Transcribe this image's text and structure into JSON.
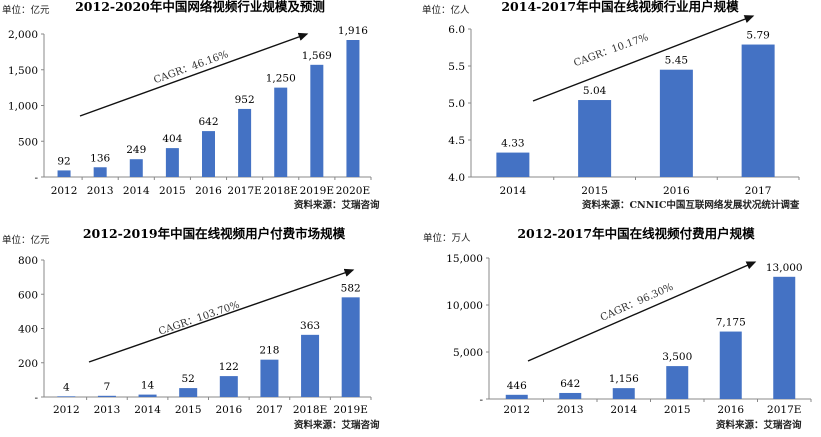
{
  "chart_data": [
    {
      "type": "bar",
      "title": "2012-2020年中国网络视频行业规模及预测",
      "unit_label": "单位：亿元",
      "categories": [
        "2012",
        "2013",
        "2014",
        "2015",
        "2016",
        "2017E",
        "2018E",
        "2019E",
        "2020E"
      ],
      "values": [
        92,
        136,
        249,
        404,
        642,
        952,
        1250,
        1569,
        1916
      ],
      "value_labels": [
        "92",
        "136",
        "249",
        "404",
        "642",
        "952",
        "1,250",
        "1,569",
        "1,916"
      ],
      "ylim": [
        0,
        2000
      ],
      "yticks": [
        "-",
        "500",
        "1,000",
        "1,500",
        "2,000"
      ],
      "cagr": "CAGR：46.16%",
      "source": "",
      "grid": false,
      "bar_color": "#4472C4"
    },
    {
      "type": "bar",
      "title": "2014-2017年中国在线视频行业用户规模",
      "unit_label": "单位：亿人",
      "categories": [
        "2014",
        "2015",
        "2016",
        "2017"
      ],
      "values": [
        4.33,
        5.04,
        5.45,
        5.79
      ],
      "value_labels": [
        "4.33",
        "5.04",
        "5.45",
        "5.79"
      ],
      "ylim": [
        4.0,
        6.0
      ],
      "yticks": [
        "4.0",
        "4.5",
        "5.0",
        "5.5",
        "6.0"
      ],
      "cagr": "CAGR：10.17%",
      "source": "资料来源：CNNIC中国互联网络发展状况统计调查",
      "grid": false,
      "bar_color": "#4472C4"
    },
    {
      "type": "bar",
      "title": "2012-2019年中国在线视频用户付费市场规模",
      "unit_label": "单位：亿元",
      "categories": [
        "2012",
        "2013",
        "2014",
        "2015",
        "2016",
        "2017",
        "2018E",
        "2019E"
      ],
      "values": [
        4,
        7,
        14,
        52,
        122,
        218,
        363,
        582
      ],
      "value_labels": [
        "4",
        "7",
        "14",
        "52",
        "122",
        "218",
        "363",
        "582"
      ],
      "ylim": [
        0,
        800
      ],
      "yticks": [
        "-",
        "200",
        "400",
        "600",
        "800"
      ],
      "cagr": "CAGR：103.70%",
      "source": "资料来源：艾瑞咨询",
      "grid": false,
      "bar_color": "#4472C4"
    },
    {
      "type": "bar",
      "title": "2012-2017年中国在线视频付费用户规模",
      "unit_label": "单位：万人",
      "categories": [
        "2012",
        "2013",
        "2014",
        "2015",
        "2016",
        "2017E"
      ],
      "values": [
        446,
        642,
        1156,
        3500,
        7175,
        13000
      ],
      "value_labels": [
        "446",
        "642",
        "1,156",
        "3,500",
        "7,175",
        "13,000"
      ],
      "ylim": [
        0,
        15000
      ],
      "yticks": [
        "-",
        "5,000",
        "10,000",
        "15,000"
      ],
      "cagr": "CAGR：96.30%",
      "source": "资料来源：艾瑞咨询",
      "grid": false,
      "bar_color": "#4472C4"
    }
  ],
  "top_source": "资料来源：艾瑞咨询"
}
